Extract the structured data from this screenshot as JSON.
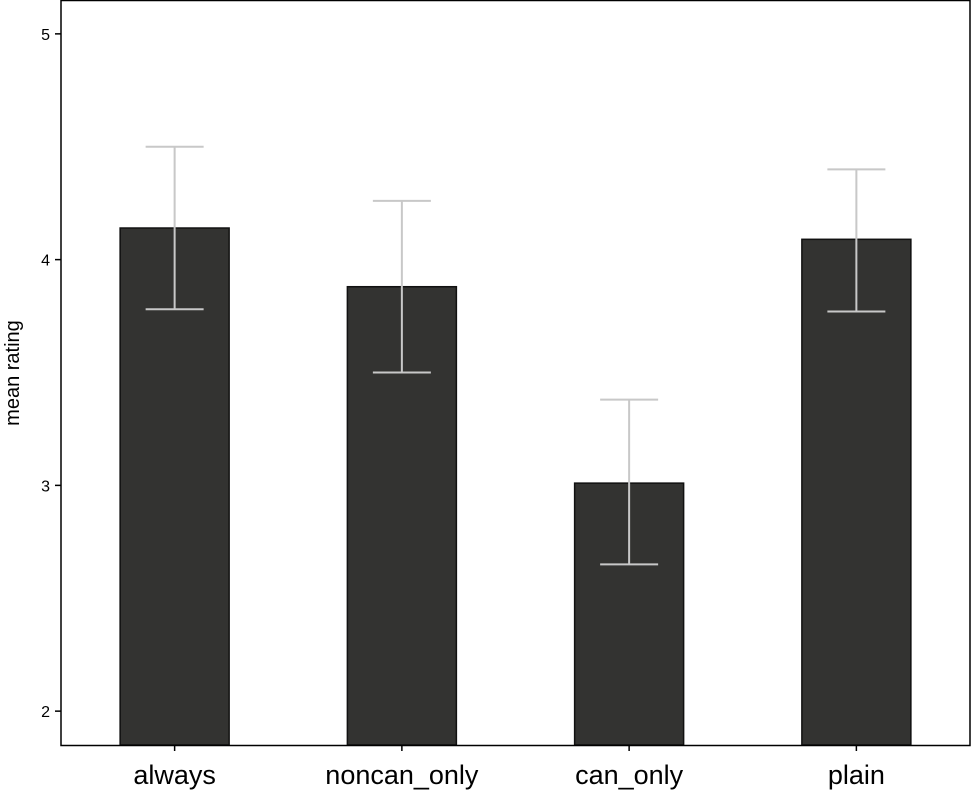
{
  "chart_data": {
    "type": "bar",
    "categories": [
      "always",
      "noncan_only",
      "can_only",
      "plain"
    ],
    "values": [
      4.14,
      3.88,
      3.01,
      4.09
    ],
    "error_low": [
      3.78,
      3.5,
      2.65,
      3.77
    ],
    "error_high": [
      4.5,
      4.26,
      3.38,
      4.4
    ],
    "ylabel": "mean rating",
    "yticks": [
      2,
      3,
      4,
      5
    ],
    "ylim": [
      1.85,
      5.15
    ],
    "grid": true,
    "colors": {
      "bar": "#333331",
      "error": "#c8c8c8",
      "grid": "#ffffff",
      "panel": "#ffffff"
    }
  }
}
